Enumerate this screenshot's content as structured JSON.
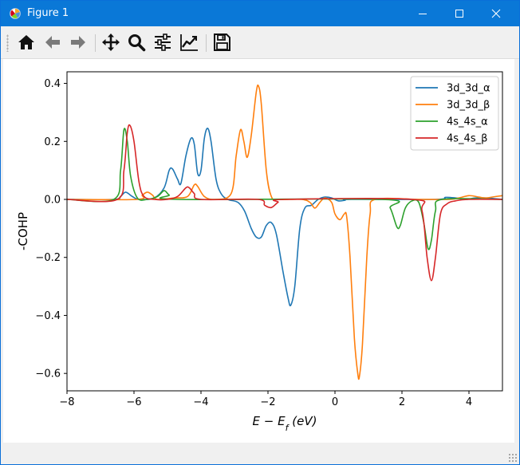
{
  "window": {
    "title": "Figure 1",
    "icon": "matplotlib-icon",
    "controls": [
      "minimize-icon",
      "maximize-icon",
      "close-icon"
    ]
  },
  "toolbar": {
    "buttons": [
      {
        "name": "home",
        "icon": "home-icon"
      },
      {
        "name": "back",
        "icon": "back-arrow-icon"
      },
      {
        "name": "forward",
        "icon": "forward-arrow-icon"
      },
      {
        "name": "pan",
        "icon": "move-icon"
      },
      {
        "name": "zoom",
        "icon": "zoom-icon"
      },
      {
        "name": "subplots",
        "icon": "sliders-icon"
      },
      {
        "name": "customize",
        "icon": "line-chart-icon"
      },
      {
        "name": "save",
        "icon": "floppy-disk-icon"
      }
    ]
  },
  "chart_data": {
    "type": "line",
    "title": "",
    "xlabel": "E − E_f (eV)",
    "ylabel": "-COHP",
    "xlim": [
      -8,
      5
    ],
    "ylim": [
      -0.66,
      0.44
    ],
    "xticks": [
      -8,
      -6,
      -4,
      -2,
      0,
      2,
      4
    ],
    "yticks": [
      -0.6,
      -0.4,
      -0.2,
      0.0,
      0.2,
      0.4
    ],
    "xtick_labels": [
      "−8",
      "−6",
      "−4",
      "−2",
      "0",
      "2",
      "4"
    ],
    "ytick_labels": [
      "−0.6",
      "−0.4",
      "−0.2",
      "0.0",
      "0.2",
      "0.4"
    ],
    "grid": false,
    "legend_position": "top-right",
    "series": [
      {
        "name": "3d_3d_α",
        "color": "#1f77b4",
        "points": [
          [
            -8,
            0
          ],
          [
            -6.6,
            0
          ],
          [
            -6.4,
            0.01
          ],
          [
            -6.25,
            0.025
          ],
          [
            -6.05,
            0.01
          ],
          [
            -5.85,
            0
          ],
          [
            -5.4,
            0.005
          ],
          [
            -5.1,
            0.04
          ],
          [
            -4.95,
            0.1
          ],
          [
            -4.85,
            0.105
          ],
          [
            -4.7,
            0.07
          ],
          [
            -4.6,
            0.055
          ],
          [
            -4.45,
            0.15
          ],
          [
            -4.3,
            0.21
          ],
          [
            -4.2,
            0.19
          ],
          [
            -4.1,
            0.09
          ],
          [
            -4.0,
            0.1
          ],
          [
            -3.9,
            0.21
          ],
          [
            -3.8,
            0.245
          ],
          [
            -3.7,
            0.2
          ],
          [
            -3.55,
            0.07
          ],
          [
            -3.4,
            0.02
          ],
          [
            -3.2,
            0
          ],
          [
            -2.9,
            -0.01
          ],
          [
            -2.7,
            -0.04
          ],
          [
            -2.5,
            -0.1
          ],
          [
            -2.35,
            -0.13
          ],
          [
            -2.2,
            -0.13
          ],
          [
            -2.05,
            -0.09
          ],
          [
            -1.9,
            -0.08
          ],
          [
            -1.75,
            -0.12
          ],
          [
            -1.55,
            -0.25
          ],
          [
            -1.4,
            -0.34
          ],
          [
            -1.32,
            -0.365
          ],
          [
            -1.2,
            -0.3
          ],
          [
            -1.05,
            -0.1
          ],
          [
            -0.9,
            -0.03
          ],
          [
            -0.7,
            -0.02
          ],
          [
            -0.5,
            0
          ],
          [
            -0.3,
            0.008
          ],
          [
            -0.1,
            0.005
          ],
          [
            0.1,
            -0.005
          ],
          [
            0.3,
            -0.003
          ],
          [
            0.5,
            0
          ],
          [
            3,
            0
          ],
          [
            3.3,
            0.007
          ],
          [
            3.6,
            0.005
          ],
          [
            3.9,
            0
          ],
          [
            4.2,
            0.005
          ],
          [
            4.5,
            0.005
          ],
          [
            5,
            0
          ]
        ]
      },
      {
        "name": "3d_3d_β",
        "color": "#ff7f0e",
        "points": [
          [
            -8,
            0
          ],
          [
            -5.9,
            0
          ],
          [
            -5.75,
            0.015
          ],
          [
            -5.6,
            0.025
          ],
          [
            -5.45,
            0.015
          ],
          [
            -5.3,
            0
          ],
          [
            -4.8,
            0.005
          ],
          [
            -4.4,
            0.01
          ],
          [
            -4.2,
            0.05
          ],
          [
            -4.1,
            0.045
          ],
          [
            -3.9,
            0.01
          ],
          [
            -3.6,
            0
          ],
          [
            -3.1,
            0.02
          ],
          [
            -2.95,
            0.15
          ],
          [
            -2.82,
            0.24
          ],
          [
            -2.72,
            0.2
          ],
          [
            -2.62,
            0.145
          ],
          [
            -2.5,
            0.22
          ],
          [
            -2.35,
            0.37
          ],
          [
            -2.28,
            0.39
          ],
          [
            -2.2,
            0.33
          ],
          [
            -2.05,
            0.1
          ],
          [
            -1.9,
            0.01
          ],
          [
            -1.7,
            0
          ],
          [
            -1.0,
            0
          ],
          [
            -0.75,
            -0.01
          ],
          [
            -0.6,
            -0.03
          ],
          [
            -0.45,
            -0.01
          ],
          [
            -0.3,
            0.005
          ],
          [
            -0.1,
            -0.01
          ],
          [
            0.0,
            -0.05
          ],
          [
            0.15,
            -0.07
          ],
          [
            0.28,
            -0.05
          ],
          [
            0.35,
            -0.06
          ],
          [
            0.45,
            -0.2
          ],
          [
            0.58,
            -0.48
          ],
          [
            0.68,
            -0.6
          ],
          [
            0.73,
            -0.61
          ],
          [
            0.82,
            -0.5
          ],
          [
            0.95,
            -0.2
          ],
          [
            1.05,
            -0.05
          ],
          [
            1.2,
            0
          ],
          [
            2.5,
            0
          ],
          [
            3.4,
            0
          ],
          [
            3.7,
            0.005
          ],
          [
            4.0,
            0.013
          ],
          [
            4.3,
            0.008
          ],
          [
            4.5,
            0.005
          ],
          [
            4.8,
            0.01
          ],
          [
            5,
            0.013
          ]
        ]
      },
      {
        "name": "4s_4s_α",
        "color": "#2ca02c",
        "points": [
          [
            -8,
            0
          ],
          [
            -6.6,
            0
          ],
          [
            -6.4,
            0.1
          ],
          [
            -6.3,
            0.24
          ],
          [
            -6.2,
            0.2
          ],
          [
            -6.1,
            0.08
          ],
          [
            -5.9,
            0.005
          ],
          [
            -5.6,
            0
          ],
          [
            -5.3,
            0.01
          ],
          [
            -5.1,
            0.03
          ],
          [
            -4.95,
            0.015
          ],
          [
            -4.7,
            0
          ],
          [
            1.4,
            0
          ],
          [
            1.65,
            -0.03
          ],
          [
            1.85,
            -0.095
          ],
          [
            1.95,
            -0.09
          ],
          [
            2.1,
            -0.03
          ],
          [
            2.3,
            -0.005
          ],
          [
            2.5,
            -0.01
          ],
          [
            2.65,
            -0.08
          ],
          [
            2.78,
            -0.17
          ],
          [
            2.88,
            -0.14
          ],
          [
            3.0,
            -0.04
          ],
          [
            3.2,
            0
          ],
          [
            5,
            0
          ]
        ]
      },
      {
        "name": "4s_4s_β",
        "color": "#d62728",
        "points": [
          [
            -8,
            0
          ],
          [
            -6.5,
            0
          ],
          [
            -6.3,
            0.1
          ],
          [
            -6.2,
            0.23
          ],
          [
            -6.12,
            0.255
          ],
          [
            -6.0,
            0.2
          ],
          [
            -5.85,
            0.06
          ],
          [
            -5.7,
            0.01
          ],
          [
            -5.4,
            0
          ],
          [
            -5.0,
            0
          ],
          [
            -4.7,
            0.01
          ],
          [
            -4.45,
            0.04
          ],
          [
            -4.35,
            0.04
          ],
          [
            -4.2,
            0.02
          ],
          [
            -4.0,
            0
          ],
          [
            -2.3,
            0
          ],
          [
            -2.1,
            -0.02
          ],
          [
            -1.9,
            -0.028
          ],
          [
            -1.7,
            -0.01
          ],
          [
            -1.5,
            0
          ],
          [
            2.3,
            0
          ],
          [
            2.6,
            -0.04
          ],
          [
            2.75,
            -0.2
          ],
          [
            2.88,
            -0.28
          ],
          [
            3.0,
            -0.2
          ],
          [
            3.15,
            -0.05
          ],
          [
            3.35,
            -0.015
          ],
          [
            3.6,
            -0.005
          ],
          [
            4.0,
            0
          ],
          [
            5,
            0
          ]
        ]
      }
    ]
  }
}
